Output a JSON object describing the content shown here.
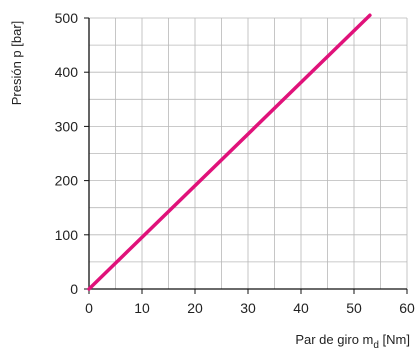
{
  "chart_data": {
    "type": "line",
    "xlabel": "Par de giro m",
    "xlabel_sub": "d",
    "xlabel_unit": " [Nm]",
    "ylabel": "Presión p [bar]",
    "xlim": [
      0,
      60
    ],
    "ylim": [
      0,
      500
    ],
    "x_ticks": [
      "0",
      "10",
      "20",
      "30",
      "40",
      "50",
      "60"
    ],
    "y_ticks": [
      "0",
      "100",
      "200",
      "300",
      "400",
      "500"
    ],
    "x_tick_values": [
      0,
      10,
      20,
      30,
      40,
      50,
      60
    ],
    "y_tick_values": [
      0,
      100,
      200,
      300,
      400,
      500
    ],
    "grid": true,
    "series": [
      {
        "x": [
          0,
          53
        ],
        "y": [
          0,
          505
        ],
        "color": "#e0127a"
      }
    ],
    "colors": {
      "grid": "#b8b8b8",
      "axis": "#111111",
      "line": "#e0127a"
    }
  }
}
